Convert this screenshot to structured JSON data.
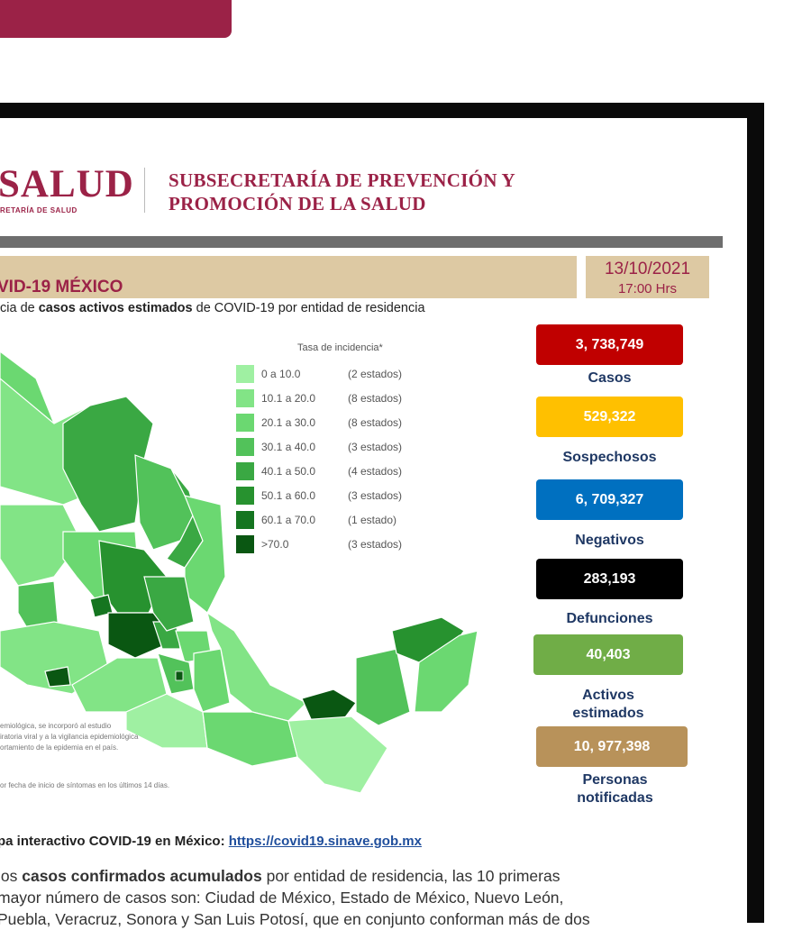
{
  "header": {
    "logo_text": "SALUD",
    "logo_subtext": "RETARÍA DE SALUD",
    "subsecretaria_line1": "SUBSECRETARÍA DE PREVENCIÓN Y",
    "subsecretaria_line2": "PROMOCIÓN DE LA SALUD"
  },
  "report": {
    "title": "VID-19 MÉXICO",
    "date": "13/10/2021",
    "time": "17:00 Hrs",
    "subtitle_pre": "cia de ",
    "subtitle_bold": "casos activos estimados",
    "subtitle_post": " de COVID-19 por entidad de residencia"
  },
  "legend": {
    "title": "Tasa de incidencia*",
    "items": [
      {
        "range": "0  a  10.0",
        "count": "(2 estados)",
        "color": "#9ff0a2"
      },
      {
        "range": "10.1 a  20.0",
        "count": "(8 estados)",
        "color": "#82e486"
      },
      {
        "range": "20.1 a  30.0",
        "count": "(8 estados)",
        "color": "#6bd871"
      },
      {
        "range": "30.1 a  40.0",
        "count": "(3 estados)",
        "color": "#52c25a"
      },
      {
        "range": "40.1 a  50.0",
        "count": "(4 estados)",
        "color": "#3aa843"
      },
      {
        "range": "50.1 a  60.0",
        "count": "(3 estados)",
        "color": "#27922f"
      },
      {
        "range": "60.1 a  70.0",
        "count": "(1 estado)",
        "color": "#157520"
      },
      {
        "range": ">70.0",
        "count": "(3 estados)",
        "color": "#0a5712"
      }
    ]
  },
  "stats": [
    {
      "value": "3, 738,749",
      "label": "Casos",
      "color": "#c00000"
    },
    {
      "value": "529,322",
      "label": "Sospechosos",
      "color": "#ffc000"
    },
    {
      "value": "6, 709,327",
      "label": "Negativos",
      "color": "#0070c0"
    },
    {
      "value": "283,193",
      "label": "Defunciones",
      "color": "#000000"
    },
    {
      "value": "40,403",
      "label_line1": "Activos",
      "label_line2": "estimados",
      "color": "#70ad47"
    },
    {
      "value": "10, 977,398",
      "label_line1": "Personas",
      "label_line2": "notificadas",
      "color": "#b8925a"
    }
  ],
  "footnotes": {
    "line1": "emiológica, se incorporó al estudio",
    "line2": "iratoria viral y a la vigilancia epidemiológica",
    "line3": "ortamiento de la epidemia en el país.",
    "line4": "or fecha de inicio de síntomas en los últimos 14 días."
  },
  "links": {
    "prefix": "pa interactivo COVID-19 en México: ",
    "url": "https://covid19.sinave.gob.mx"
  },
  "paragraph": {
    "p1": "los ",
    "p1_bold": "casos confirmados acumulados",
    "p1_rest": " por entidad de residencia, las 10 primeras",
    "line2": "mayor número de casos son: Ciudad de México, Estado de México, Nuevo León,",
    "line3": "Puebla, Veracruz, Sonora y San Luis Potosí, que en conjunto conforman más de dos"
  }
}
